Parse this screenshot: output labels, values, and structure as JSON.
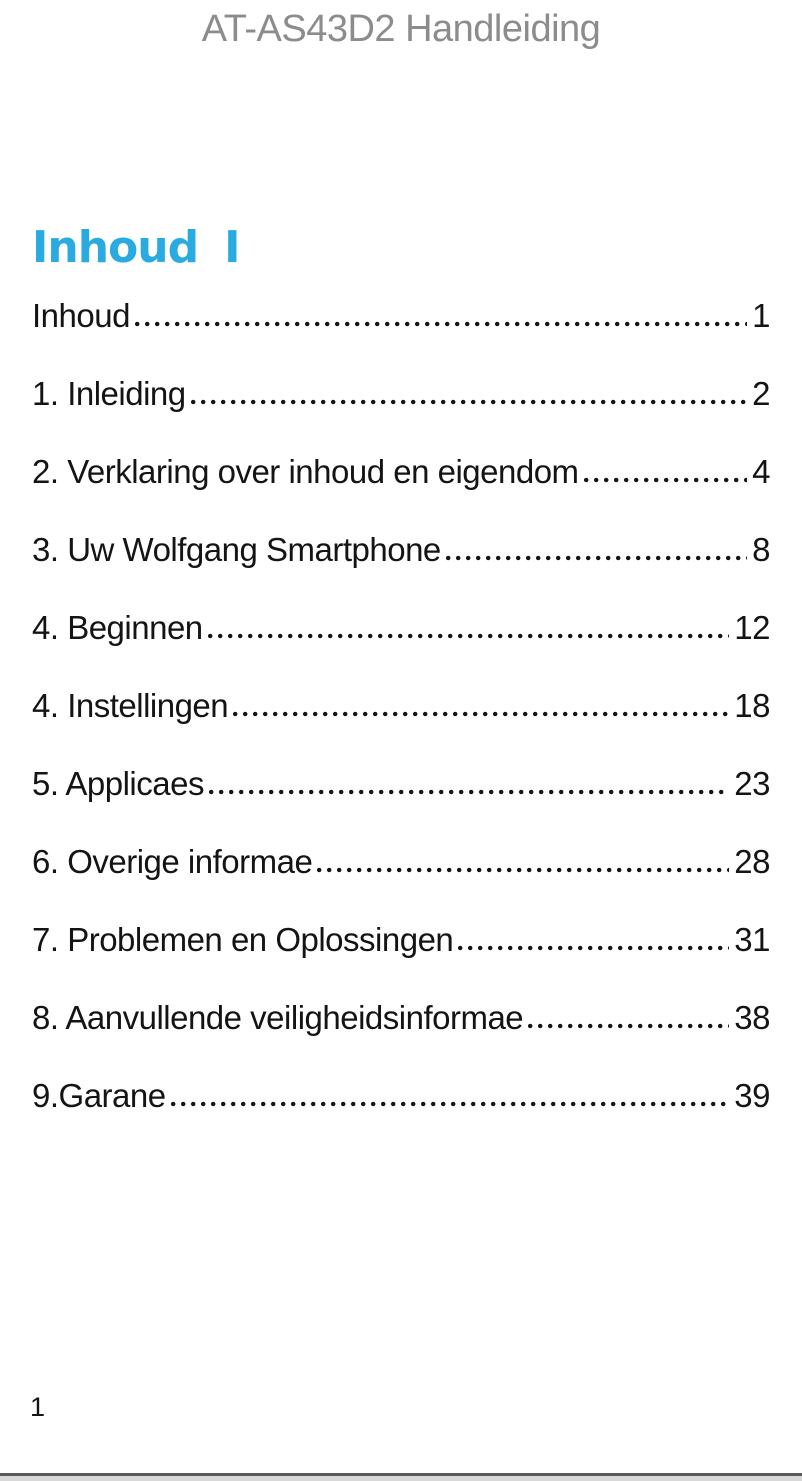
{
  "header": {
    "title": "AT-AS43D2 Handleiding"
  },
  "toc": {
    "heading": "Inhoud",
    "heading_suffix": "I",
    "entries": [
      {
        "label": "Inhoud",
        "page": "1"
      },
      {
        "label": "1. Inleiding",
        "page": "2"
      },
      {
        "label": "2. Verklaring over inhoud en eigendom",
        "page": "4"
      },
      {
        "label": "3. Uw Wolfgang Smartphone",
        "page": "8"
      },
      {
        "label": "4. Beginnen",
        "page": "12"
      },
      {
        "label": "4. Instellingen",
        "page": "18"
      },
      {
        "label": "5. Applicaes",
        "page": "23"
      },
      {
        "label": "6. Overige informae",
        "page": "28"
      },
      {
        "label": "7. Problemen en Oplossingen",
        "page": "31"
      },
      {
        "label": "8. Aanvullende veiligheidsinformae",
        "page": "38"
      },
      {
        "label": "9.Garane",
        "page": "39"
      }
    ]
  },
  "footer": {
    "page_number": "1"
  },
  "colors": {
    "accent_cyan": "#29abe2",
    "title_gray": "#8c8c8c",
    "body_text": "#141414",
    "rule_dark": "#595a5e",
    "rule_light": "#d8d8d8"
  }
}
